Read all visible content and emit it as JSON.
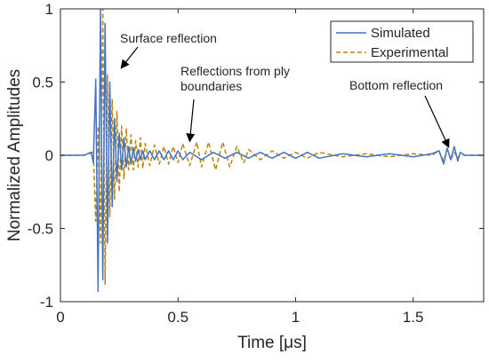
{
  "chart_data": {
    "type": "line",
    "xlabel": "Time [μs]",
    "ylabel": "Normalized Amplitudes",
    "xlim": [
      0,
      1.8
    ],
    "ylim": [
      -1,
      1
    ],
    "xticks": [
      0,
      0.5,
      1,
      1.5
    ],
    "xtick_labels": [
      "0",
      "0.5",
      "1",
      "1.5"
    ],
    "yticks": [
      -1,
      -0.5,
      0,
      0.5,
      1
    ],
    "ytick_labels": [
      "-1",
      "-0.5",
      "0",
      "0.5",
      "1"
    ],
    "grid": false,
    "legend_position": "top-right",
    "series": [
      {
        "name": "Simulated",
        "color": "#4472c4",
        "style": "solid",
        "x": [
          0,
          0.1,
          0.13,
          0.14,
          0.15,
          0.16,
          0.17,
          0.18,
          0.19,
          0.2,
          0.21,
          0.22,
          0.23,
          0.24,
          0.25,
          0.26,
          0.27,
          0.28,
          0.29,
          0.3,
          0.31,
          0.32,
          0.33,
          0.34,
          0.35,
          0.36,
          0.38,
          0.4,
          0.42,
          0.44,
          0.46,
          0.48,
          0.5,
          0.52,
          0.55,
          0.6,
          0.65,
          0.7,
          0.75,
          0.8,
          0.85,
          0.9,
          0.95,
          1.0,
          1.05,
          1.1,
          1.2,
          1.3,
          1.4,
          1.5,
          1.58,
          1.61,
          1.63,
          1.645,
          1.66,
          1.675,
          1.69,
          1.7,
          1.72,
          1.75,
          1.8
        ],
        "y": [
          0,
          0,
          0.02,
          -0.05,
          0.52,
          -0.93,
          1.0,
          -0.85,
          0.9,
          -0.6,
          0.5,
          -0.35,
          0.25,
          -0.18,
          0.15,
          -0.1,
          0.12,
          -0.08,
          0.06,
          -0.06,
          0.05,
          -0.04,
          0.04,
          -0.03,
          0.03,
          -0.03,
          0.03,
          -0.03,
          0.03,
          -0.03,
          0.03,
          -0.03,
          0.03,
          -0.03,
          0.02,
          -0.03,
          0.02,
          -0.02,
          0.02,
          -0.02,
          0.02,
          -0.02,
          0.02,
          -0.02,
          0.02,
          -0.02,
          0.01,
          -0.01,
          0.01,
          -0.01,
          0.01,
          0.03,
          -0.06,
          0.05,
          -0.03,
          0.06,
          -0.04,
          0.02,
          0.0,
          0.0,
          0.0
        ]
      },
      {
        "name": "Experimental",
        "color": "#b8860b",
        "style": "dashed",
        "x": [
          0,
          0.1,
          0.14,
          0.15,
          0.16,
          0.17,
          0.18,
          0.19,
          0.2,
          0.21,
          0.22,
          0.23,
          0.24,
          0.25,
          0.26,
          0.27,
          0.28,
          0.29,
          0.3,
          0.31,
          0.32,
          0.33,
          0.34,
          0.35,
          0.36,
          0.38,
          0.4,
          0.42,
          0.44,
          0.46,
          0.48,
          0.5,
          0.52,
          0.55,
          0.58,
          0.6,
          0.63,
          0.66,
          0.69,
          0.72,
          0.75,
          0.78,
          0.8,
          0.85,
          0.9,
          0.95,
          1.0,
          1.05,
          1.1,
          1.2,
          1.3,
          1.4,
          1.5,
          1.58,
          1.61,
          1.63,
          1.645,
          1.66,
          1.675,
          1.69,
          1.7,
          1.72,
          1.75,
          1.8
        ],
        "y": [
          0,
          0,
          0.02,
          -0.45,
          0.2,
          -0.6,
          1.0,
          -0.88,
          0.55,
          -0.42,
          0.38,
          -0.3,
          0.3,
          -0.25,
          0.2,
          -0.16,
          0.18,
          -0.1,
          0.14,
          -0.1,
          0.1,
          -0.08,
          0.12,
          -0.09,
          0.08,
          -0.07,
          0.07,
          -0.06,
          0.06,
          -0.06,
          0.06,
          -0.05,
          0.08,
          -0.07,
          0.09,
          -0.08,
          0.09,
          -0.1,
          0.09,
          -0.08,
          0.06,
          -0.05,
          0.04,
          -0.03,
          0.03,
          -0.02,
          0.02,
          -0.02,
          0.02,
          -0.01,
          0.01,
          -0.01,
          0.01,
          0.0,
          0.03,
          -0.04,
          0.04,
          -0.03,
          0.02,
          -0.02,
          0.01,
          0.0,
          0.0,
          0.0
        ]
      }
    ],
    "annotations": [
      {
        "lines": [
          "Surface reflection"
        ],
        "arrow_to": [
          0.26,
          0.6
        ]
      },
      {
        "lines": [
          "Reflections from ply",
          "boundaries"
        ],
        "arrow_to": [
          0.55,
          0.1
        ]
      },
      {
        "lines": [
          "Bottom reflection"
        ],
        "arrow_to": [
          1.65,
          0.06
        ]
      }
    ]
  }
}
